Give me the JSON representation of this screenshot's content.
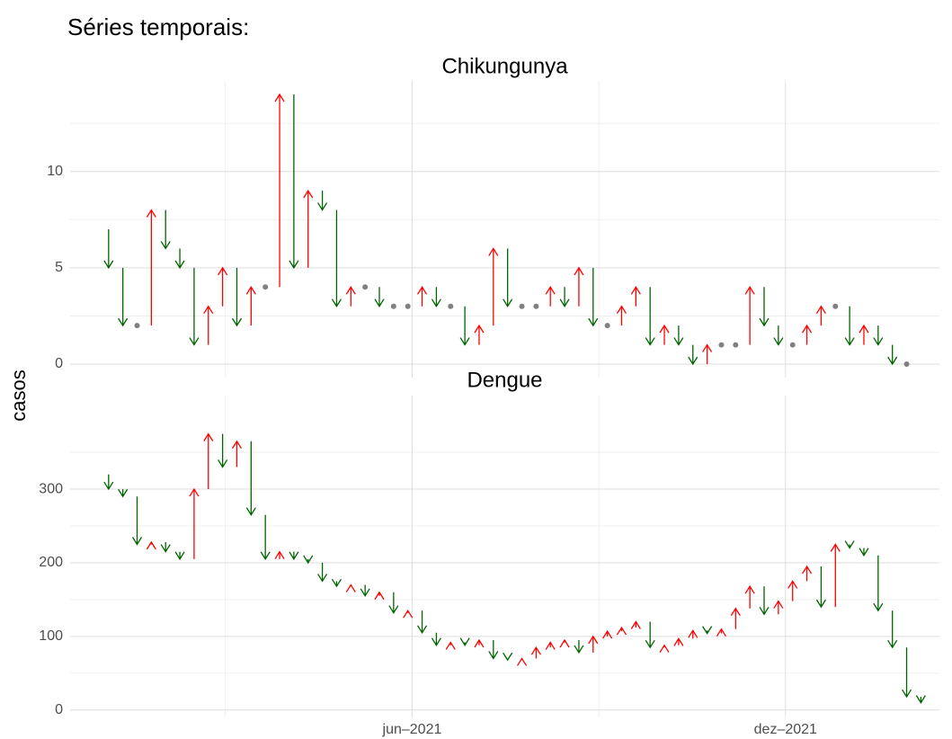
{
  "heading": "Séries temporais:",
  "ylabel": "casos",
  "x_axis": {
    "xlim": [
      -1.7,
      59.3
    ],
    "xticks": [
      {
        "value": 22.3,
        "label": "jun–2021"
      },
      {
        "value": 48.5,
        "label": "dez–2021"
      }
    ]
  },
  "chart_data": [
    {
      "type": "arrow",
      "title": "Chikungunya",
      "up_color": "#ff0000",
      "down_color": "#006400",
      "flat_color": "#808080",
      "values": [
        7,
        5,
        2,
        2,
        8,
        6,
        5,
        1,
        3,
        5,
        2,
        4,
        4,
        14,
        5,
        9,
        8,
        3,
        4,
        4,
        3,
        3,
        3,
        4,
        3,
        3,
        1,
        2,
        6,
        3,
        3,
        3,
        4,
        3,
        5,
        2,
        2,
        3,
        4,
        1,
        2,
        1,
        0,
        1,
        1,
        1,
        4,
        2,
        1,
        1,
        2,
        3,
        3,
        1,
        2,
        1,
        0,
        0
      ],
      "ylim": [
        -0.7,
        14.7
      ],
      "yticks": [
        0,
        5,
        10
      ],
      "grid": true
    },
    {
      "type": "arrow",
      "title": "Dengue",
      "up_color": "#ff0000",
      "down_color": "#006400",
      "flat_color": "#808080",
      "values": [
        320,
        300,
        290,
        225,
        228,
        215,
        205,
        300,
        375,
        330,
        365,
        265,
        205,
        215,
        205,
        200,
        175,
        168,
        170,
        155,
        160,
        132,
        135,
        105,
        88,
        92,
        88,
        95,
        70,
        68,
        70,
        85,
        92,
        95,
        78,
        100,
        107,
        112,
        120,
        85,
        88,
        97,
        108,
        104,
        110,
        138,
        168,
        130,
        148,
        175,
        195,
        140,
        225,
        220,
        210,
        135,
        85,
        18,
        10
      ],
      "ylim": [
        -10,
        427
      ],
      "yticks": [
        0,
        100,
        200,
        300
      ],
      "grid": true
    }
  ]
}
